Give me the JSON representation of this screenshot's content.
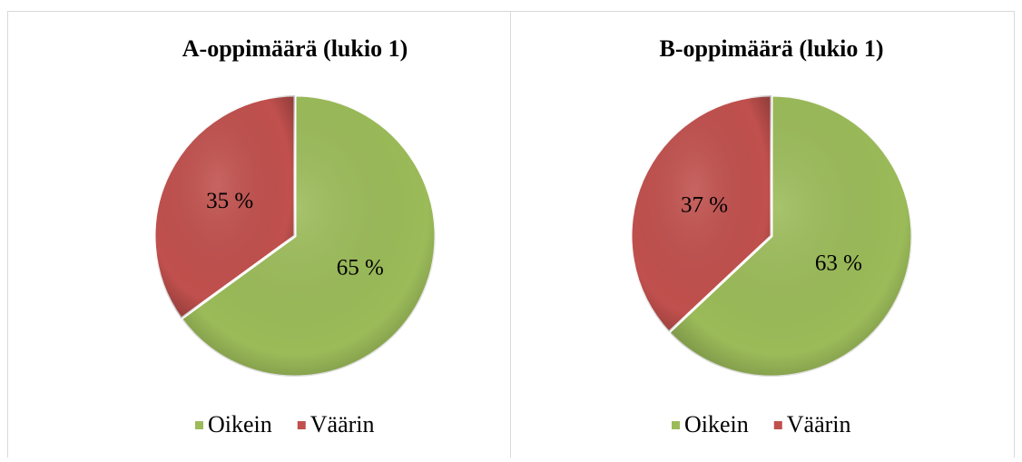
{
  "chart_data": [
    {
      "type": "pie",
      "title": "A-oppimäärä (lukio 1)",
      "categories": [
        "Oikein",
        "Väärin"
      ],
      "values": [
        65,
        35
      ],
      "value_labels": [
        "65 %",
        "35 %"
      ],
      "colors": [
        "#9bbb59",
        "#c0504d"
      ],
      "legend": "bottom"
    },
    {
      "type": "pie",
      "title": "B-oppimäärä (lukio 1)",
      "categories": [
        "Oikein",
        "Väärin"
      ],
      "values": [
        63,
        37
      ],
      "value_labels": [
        "63 %",
        "37 %"
      ],
      "colors": [
        "#9bbb59",
        "#c0504d"
      ],
      "legend": "bottom"
    }
  ]
}
